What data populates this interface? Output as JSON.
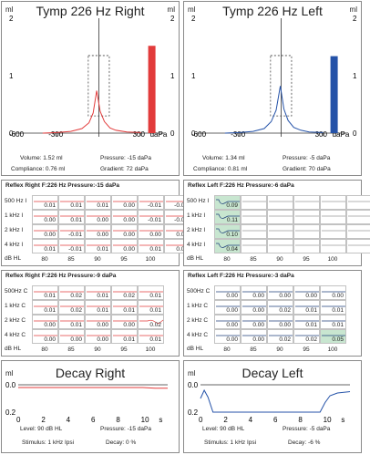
{
  "colors": {
    "right": "#e23b3b",
    "left": "#2452a8",
    "highlight": "#c8e6d0",
    "grid": "#c2c2c2"
  },
  "tymp_right": {
    "title": "Tymp 226 Hz Right",
    "unit": "ml",
    "y_ticks": [
      "2",
      "1",
      "0"
    ],
    "x_ticks": [
      "-600",
      "-300",
      "0",
      "300"
    ],
    "x_unit": "daPa",
    "volume": "Volume: 1.52 ml",
    "pressure": "Pressure: -15 daPa",
    "compliance": "Compliance: 0.76 ml",
    "gradient": "Gradient: 72 daPa"
  },
  "tymp_left": {
    "title": "Tymp 226 Hz Left",
    "unit": "ml",
    "y_ticks": [
      "2",
      "1",
      "0"
    ],
    "x_ticks": [
      "-600",
      "-300",
      "0",
      "300"
    ],
    "x_unit": "daPa",
    "volume": "Volume: 1.34 ml",
    "pressure": "Pressure: -5 daPa",
    "compliance": "Compliance: 0.81 ml",
    "gradient": "Gradient: 70 daPa"
  },
  "reflex_right_ipsi": {
    "title": "Reflex Right  F:226 Hz Pressure:-15 daPa",
    "rows": [
      "500 Hz I",
      "1 kHz I",
      "2 kHz I",
      "4 kHz I"
    ],
    "values": [
      [
        "0.01",
        "0.01",
        "0.01",
        "0.00",
        "-0.01",
        "-0.02"
      ],
      [
        "0.00",
        "0.01",
        "0.00",
        "0.00",
        "-0.01",
        "-0.02"
      ],
      [
        "0.00",
        "-0.01",
        "0.00",
        "0.00",
        "0.00",
        "0.00"
      ],
      [
        "0.01",
        "-0.01",
        "0.01",
        "0.00",
        "0.01",
        "0.00"
      ]
    ],
    "x_label": "dB HL",
    "x_ticks": [
      "80",
      "85",
      "90",
      "95",
      "100"
    ]
  },
  "reflex_left_ipsi": {
    "title": "Reflex Left  F:226 Hz Pressure:-6 daPa",
    "rows": [
      "500 Hz I",
      "1 kHz I",
      "2 kHz I",
      "4 kHz I"
    ],
    "values": [
      [
        "0.09"
      ],
      [
        "0.11"
      ],
      [
        "0.10"
      ],
      [
        "0.04"
      ]
    ],
    "x_label": "dB HL",
    "x_ticks": [
      "80",
      "85",
      "90",
      "95",
      "100"
    ]
  },
  "reflex_right_contra": {
    "title": "Reflex Right  F:226 Hz Pressure:-9 daPa",
    "rows": [
      "500Hz C",
      "1 kHz C",
      "2 kHz C",
      "4 kHz C"
    ],
    "values": [
      [
        "0.01",
        "0.02",
        "0.01",
        "0.02",
        "0.01"
      ],
      [
        "0.01",
        "0.02",
        "0.01",
        "0.01",
        "0.01"
      ],
      [
        "0.00",
        "0.01",
        "0.00",
        "0.00",
        "0.02"
      ],
      [
        "0.00",
        "0.00",
        "0.00",
        "0.01",
        "0.01"
      ]
    ],
    "x_label": "dB HL",
    "x_ticks": [
      "80",
      "85",
      "90",
      "95",
      "100"
    ]
  },
  "reflex_left_contra": {
    "title": "Reflex Left  F:226 Hz Pressure:-3 daPa",
    "rows": [
      "500Hz C",
      "1 kHz C",
      "2 kHz C",
      "4 kHz C"
    ],
    "values": [
      [
        "0.00",
        "0.00",
        "0.00",
        "0.00",
        "0.00"
      ],
      [
        "0.00",
        "0.00",
        "0.02",
        "0.01",
        "0.01"
      ],
      [
        "0.00",
        "0.00",
        "0.00",
        "0.01",
        "0.01"
      ],
      [
        "0.00",
        "0.00",
        "0.02",
        "0.02",
        "0.05"
      ]
    ],
    "x_label": "dB HL",
    "x_ticks": [
      "80",
      "85",
      "90",
      "95",
      "100"
    ]
  },
  "decay_right": {
    "title": "Decay Right",
    "unit": "ml",
    "y_ticks": [
      "0.0",
      "0.2"
    ],
    "x_ticks": [
      "0",
      "2",
      "4",
      "6",
      "8",
      "10"
    ],
    "x_unit": "s",
    "level": "Level: 90 dB HL",
    "pressure": "Pressure: -15 daPa",
    "stimulus": "Stimulus: 1 kHz Ipsi",
    "decay": "Decay: 0 %"
  },
  "decay_left": {
    "title": "Decay Left",
    "unit": "ml",
    "y_ticks": [
      "0.0",
      "0.2"
    ],
    "x_ticks": [
      "0",
      "2",
      "4",
      "6",
      "8",
      "10"
    ],
    "x_unit": "s",
    "level": "Level: 90 dB HL",
    "pressure": "Pressure: -5 daPa",
    "stimulus": "Stimulus: 1 kHz Ipsi",
    "decay": "Decay: -6 %"
  },
  "chart_data": [
    {
      "type": "line",
      "title": "Tymp 226 Hz Right",
      "ylabel": "ml",
      "xlabel": "daPa",
      "xlim": [
        -600,
        400
      ],
      "ylim": [
        0,
        2
      ],
      "series": [
        {
          "x": [
            -400,
            -300,
            -200,
            -120,
            -70,
            -40,
            -15,
            10,
            40,
            80,
            120,
            200,
            300
          ],
          "y": [
            0.0,
            0.01,
            0.03,
            0.08,
            0.18,
            0.35,
            0.74,
            0.38,
            0.2,
            0.09,
            0.05,
            0.02,
            0.01
          ]
        }
      ],
      "volume_bar": 1.52
    },
    {
      "type": "line",
      "title": "Tymp 226 Hz Left",
      "ylabel": "ml",
      "xlabel": "daPa",
      "xlim": [
        -600,
        400
      ],
      "ylim": [
        0,
        2
      ],
      "series": [
        {
          "x": [
            -400,
            -300,
            -200,
            -120,
            -70,
            -35,
            -5,
            20,
            50,
            90,
            140,
            200,
            300
          ],
          "y": [
            0.0,
            0.01,
            0.03,
            0.08,
            0.2,
            0.4,
            0.82,
            0.42,
            0.22,
            0.1,
            0.05,
            0.02,
            0.01
          ]
        }
      ],
      "volume_bar": 1.34
    },
    {
      "type": "line",
      "title": "Decay Right",
      "ylabel": "ml",
      "xlabel": "s",
      "xlim": [
        0,
        12
      ],
      "ylim": [
        0.2,
        0.0
      ],
      "series": [
        {
          "x": [
            0,
            1,
            2,
            3,
            4,
            5,
            6,
            7,
            8,
            9,
            10,
            11,
            12
          ],
          "y": [
            0.02,
            0.02,
            0.02,
            0.02,
            0.02,
            0.02,
            0.02,
            0.02,
            0.02,
            0.02,
            0.02,
            0.025,
            0.025
          ]
        }
      ]
    },
    {
      "type": "line",
      "title": "Decay Left",
      "ylabel": "ml",
      "xlabel": "s",
      "xlim": [
        0,
        12
      ],
      "ylim": [
        0.2,
        0.0
      ],
      "series": [
        {
          "x": [
            0,
            0.3,
            0.6,
            1,
            1.5,
            2,
            9.6,
            10,
            10.4,
            11,
            12
          ],
          "y": [
            0.1,
            0.04,
            0.09,
            0.2,
            0.2,
            0.2,
            0.2,
            0.13,
            0.08,
            0.06,
            0.05
          ]
        }
      ]
    }
  ]
}
